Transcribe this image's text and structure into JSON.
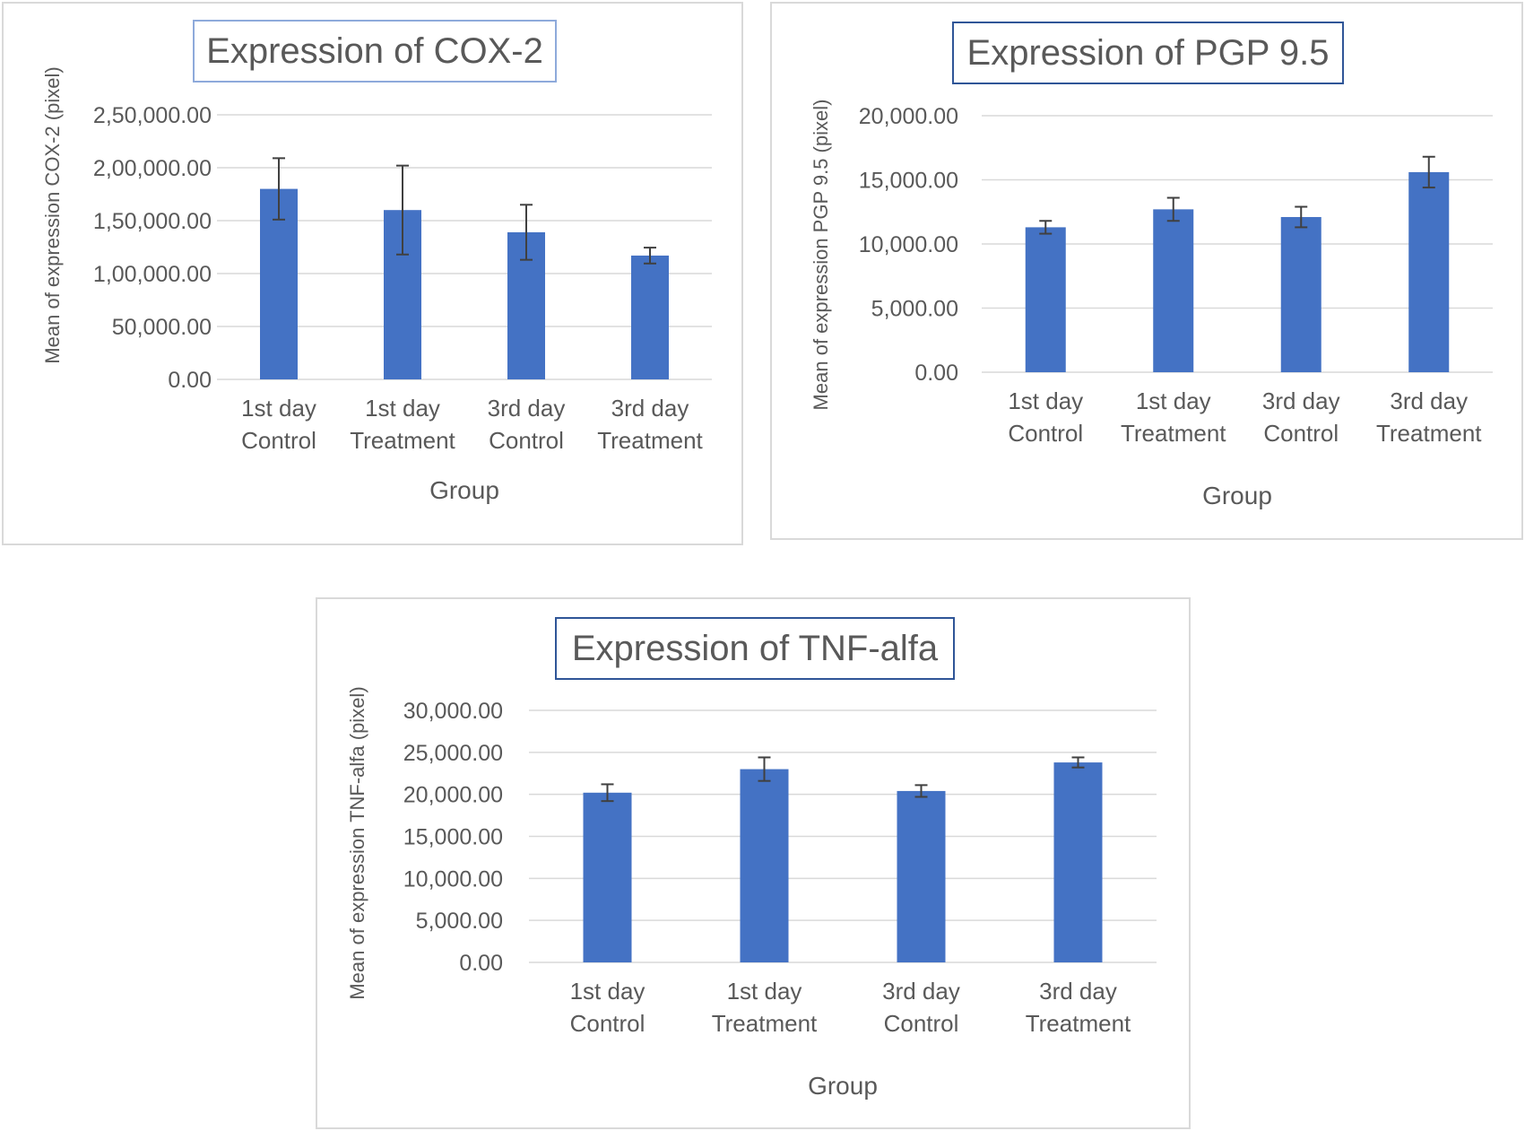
{
  "colors": {
    "bar": "#4472c4",
    "grid": "#d9d9d9",
    "error_bar": "#404040",
    "text": "#595959"
  },
  "chart_data": [
    {
      "type": "bar",
      "title": "Expression of COX-2",
      "xlabel": "Group",
      "ylabel": "Mean of expression COX-2 (pixel)",
      "categories": [
        [
          "1st day",
          "Control"
        ],
        [
          "1st day",
          "Treatment"
        ],
        [
          "3rd day",
          "Control"
        ],
        [
          "3rd day",
          "Treatment"
        ]
      ],
      "values": [
        180000,
        160000,
        139000,
        117000
      ],
      "errors": [
        29000,
        42000,
        26000,
        7500
      ],
      "ylim": [
        0,
        250000
      ],
      "yticks": [
        "0.00",
        "50,000.00",
        "1,00,000.00",
        "1,50,000.00",
        "2,00,000.00",
        "2,50,000.00"
      ],
      "grid": true
    },
    {
      "type": "bar",
      "title": "Expression of PGP 9.5",
      "xlabel": "Group",
      "ylabel": "Mean of expression PGP 9.5 (pixel)",
      "categories": [
        [
          "1st day",
          "Control"
        ],
        [
          "1st day",
          "Treatment"
        ],
        [
          "3rd day",
          "Control"
        ],
        [
          "3rd day",
          "Treatment"
        ]
      ],
      "values": [
        11300,
        12700,
        12100,
        15600
      ],
      "errors": [
        500,
        900,
        800,
        1200
      ],
      "ylim": [
        0,
        20000
      ],
      "yticks": [
        "0.00",
        "5,000.00",
        "10,000.00",
        "15,000.00",
        "20,000.00"
      ],
      "grid": true
    },
    {
      "type": "bar",
      "title": "Expression of TNF-alfa",
      "xlabel": "Group",
      "ylabel": "Mean of expression TNF-alfa (pixel)",
      "categories": [
        [
          "1st day",
          "Control"
        ],
        [
          "1st day",
          "Treatment"
        ],
        [
          "3rd day",
          "Control"
        ],
        [
          "3rd day",
          "Treatment"
        ]
      ],
      "values": [
        20200,
        23000,
        20400,
        23800
      ],
      "errors": [
        1000,
        1400,
        700,
        600
      ],
      "ylim": [
        0,
        30000
      ],
      "yticks": [
        "0.00",
        "5,000.00",
        "10,000.00",
        "15,000.00",
        "20,000.00",
        "25,000.00",
        "30,000.00"
      ],
      "grid": true
    }
  ]
}
